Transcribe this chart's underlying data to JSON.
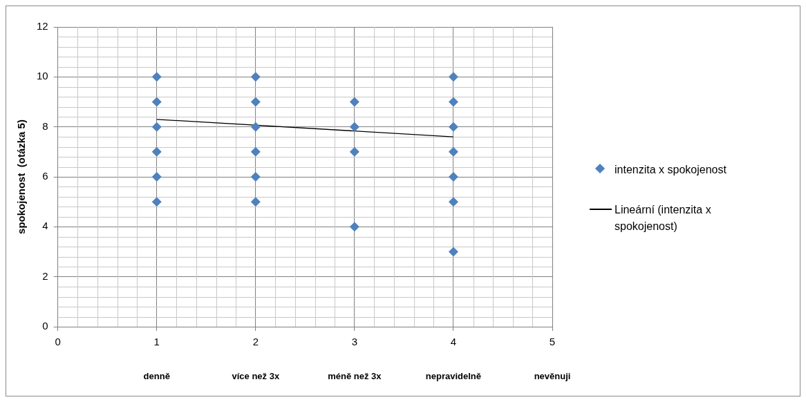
{
  "chart_data": {
    "type": "scatter",
    "ylabel": "spokojenost  (otázka 5)",
    "series": [
      {
        "name": "intenzita x spokojenost",
        "color": "#4f81bd",
        "marker": "diamond",
        "x": [
          1,
          1,
          1,
          1,
          1,
          1,
          2,
          2,
          2,
          2,
          2,
          2,
          3,
          3,
          3,
          3,
          4,
          4,
          4,
          4,
          4,
          4,
          4
        ],
        "values": [
          10,
          9,
          8,
          7,
          6,
          5,
          10,
          9,
          8,
          7,
          6,
          5,
          9,
          8,
          7,
          4,
          10,
          9,
          8,
          7,
          6,
          5,
          3
        ]
      },
      {
        "name": "Lineární (intenzita x spokojenost)",
        "type": "line",
        "color": "#000000",
        "marker": "none",
        "x": [
          1,
          4
        ],
        "values": [
          8.3,
          7.6
        ]
      }
    ],
    "xlim": [
      0,
      5
    ],
    "xticks": [
      0,
      1,
      2,
      3,
      4,
      5
    ],
    "ylim": [
      0,
      12
    ],
    "yticks": [
      0,
      2,
      4,
      6,
      8,
      10,
      12
    ],
    "annotations": [
      "denně",
      "více než 3x",
      "méně než 3x",
      "nepravidelně",
      "nevěnuji"
    ],
    "grid": true,
    "legend": "right"
  }
}
